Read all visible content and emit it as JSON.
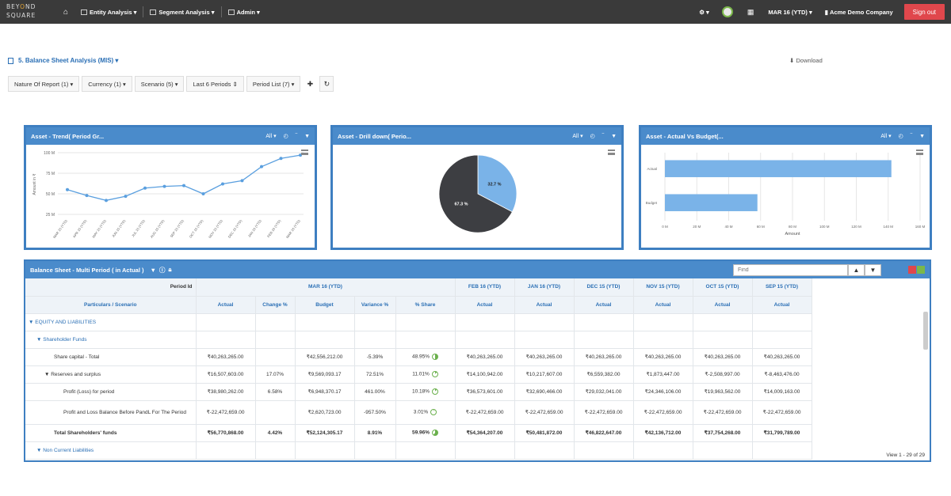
{
  "topbar": {
    "logo_top_a": "BEY",
    "logo_top_b": "ND",
    "logo_top_c": "",
    "logo_bottom": "SQUARE",
    "nav": [
      "Entity Analysis",
      "Segment Analysis",
      "Admin"
    ],
    "period": "MAR 16 (YTD)",
    "company": "Acme Demo Company",
    "signout": "Sign out"
  },
  "page": {
    "title": "5. Balance Sheet Analysis (MIS)",
    "download": "Download"
  },
  "filters": [
    "Nature Of Report (1)",
    "Currency (1)",
    "Scenario (5)",
    "Last 6 Periods",
    "Period List (7)"
  ],
  "panels": [
    {
      "title": "Asset - Trend( Period Gr...",
      "filter": "All"
    },
    {
      "title": "Asset - Drill down( Perio...",
      "filter": "All"
    },
    {
      "title": "Asset - Actual Vs Budget(...",
      "filter": "All"
    }
  ],
  "chart_data": [
    {
      "type": "line",
      "title": "Asset - Trend( Period Gr...",
      "ylabel": "Amount in ₹",
      "ylim": [
        25,
        100
      ],
      "yticks": [
        "100 M",
        "75 M",
        "50 M",
        "25 M"
      ],
      "categories": [
        "MAR 15 (YTD)",
        "APR 15 (YTD)",
        "MAY 15 (YTD)",
        "JUN 15 (YTD)",
        "JUL 15 (YTD)",
        "AUG 15 (YTD)",
        "SEP 15 (YTD)",
        "OCT 15 (YTD)",
        "NOV 15 (YTD)",
        "DEC 15 (YTD)",
        "JAN 16 (YTD)",
        "FEB 16 (YTD)",
        "MAR 16 (YTD)"
      ],
      "values": [
        55,
        48,
        42,
        47,
        57,
        59,
        60,
        50,
        62,
        66,
        83,
        93,
        97
      ]
    },
    {
      "type": "pie",
      "title": "Asset - Drill down( Perio...",
      "slices": [
        {
          "label": "32.7 %",
          "value": 32.7,
          "color": "#7ab3e8"
        },
        {
          "label": "67.3 %",
          "value": 67.3,
          "color": "#3d3e42"
        }
      ]
    },
    {
      "type": "bar",
      "orientation": "horizontal",
      "title": "Asset - Actual Vs Budget(...",
      "xlabel": "Amount",
      "categories": [
        "Actual",
        "Budget"
      ],
      "values": [
        142,
        58
      ],
      "xlim": [
        0,
        160
      ],
      "xticks": [
        "0 M",
        "20 M",
        "40 M",
        "60 M",
        "80 M",
        "100 M",
        "120 M",
        "140 M",
        "160 M"
      ]
    }
  ],
  "table": {
    "title": "Balance Sheet - Multi Period ( in Actual )",
    "find_placeholder": "Find",
    "period_id_label": "Period Id",
    "main_period": "MAR 16 (YTD)",
    "other_periods": [
      "FEB 16 (YTD)",
      "JAN 16 (YTD)",
      "DEC 15 (YTD)",
      "NOV 15 (YTD)",
      "OCT 15 (YTD)",
      "SEP 15 (YTD)"
    ],
    "col_headers": [
      "Particulars / Scenario",
      "Actual",
      "Change %",
      "Budget",
      "Variance %",
      "% Share",
      "Actual",
      "Actual",
      "Actual",
      "Actual",
      "Actual",
      "Actual"
    ],
    "rows": [
      {
        "label": "▼ EQUITY AND LIABILITIES",
        "type": "grp",
        "indent": 4,
        "cells": [
          "",
          "",
          "",
          "",
          "",
          "",
          "",
          "",
          "",
          "",
          ""
        ]
      },
      {
        "label": "▼ Shareholder Funds",
        "type": "grp",
        "indent": 14,
        "cells": [
          "",
          "",
          "",
          "",
          "",
          "",
          "",
          "",
          "",
          "",
          ""
        ]
      },
      {
        "label": "Share capital - Total",
        "type": "label",
        "indent": 36,
        "share": 48.95,
        "cells": [
          "₹40,263,265.00",
          "",
          "₹42,556,212.00",
          "-5.39%",
          "48.95%",
          "₹40,263,265.00",
          "₹40,263,265.00",
          "₹40,263,265.00",
          "₹40,263,265.00",
          "₹40,263,265.00",
          "₹40,263,265.00"
        ]
      },
      {
        "label": "▼ Reserves and surplus",
        "type": "label",
        "indent": 24,
        "share": 11.01,
        "cells": [
          "₹16,507,603.00",
          "17.07%",
          "₹9,569,093.17",
          "72.51%",
          "11.01%",
          "₹14,100,942.00",
          "₹10,217,607.00",
          "₹6,559,382.00",
          "₹1,873,447.00",
          "₹-2,508,997.00",
          "₹-8,463,476.00"
        ]
      },
      {
        "label": "Profit (Loss) for period",
        "type": "label",
        "indent": 48,
        "share": 10.18,
        "cells": [
          "₹38,980,262.00",
          "6.58%",
          "₹6,948,370.17",
          "461.00%",
          "10.18%",
          "₹36,573,601.00",
          "₹32,690,466.00",
          "₹29,032,041.00",
          "₹24,346,106.00",
          "₹19,963,562.00",
          "₹14,009,163.00"
        ]
      },
      {
        "label": "Profit and Loss Balance Before PandL For The Period",
        "type": "label",
        "indent": 48,
        "share": 3.01,
        "tall": true,
        "cells": [
          "₹-22,472,659.00",
          "",
          "₹2,620,723.00",
          "-957.50%",
          "3.01%",
          "₹-22,472,659.00",
          "₹-22,472,659.00",
          "₹-22,472,659.00",
          "₹-22,472,659.00",
          "₹-22,472,659.00",
          "₹-22,472,659.00"
        ]
      },
      {
        "label": "Total Shareholders' funds",
        "type": "total",
        "indent": 36,
        "share": 59.96,
        "cells": [
          "₹56,770,868.00",
          "4.42%",
          "₹52,124,305.17",
          "8.91%",
          "59.96%",
          "₹54,364,207.00",
          "₹50,481,872.00",
          "₹46,822,647.00",
          "₹42,136,712.00",
          "₹37,754,268.00",
          "₹31,799,789.00"
        ]
      },
      {
        "label": "▼ Non Current Liabilities",
        "type": "grp",
        "indent": 14,
        "cells": [
          "",
          "",
          "",
          "",
          "",
          "",
          "",
          "",
          "",
          "",
          ""
        ]
      }
    ],
    "view_info": "View 1 - 29 of 29"
  }
}
